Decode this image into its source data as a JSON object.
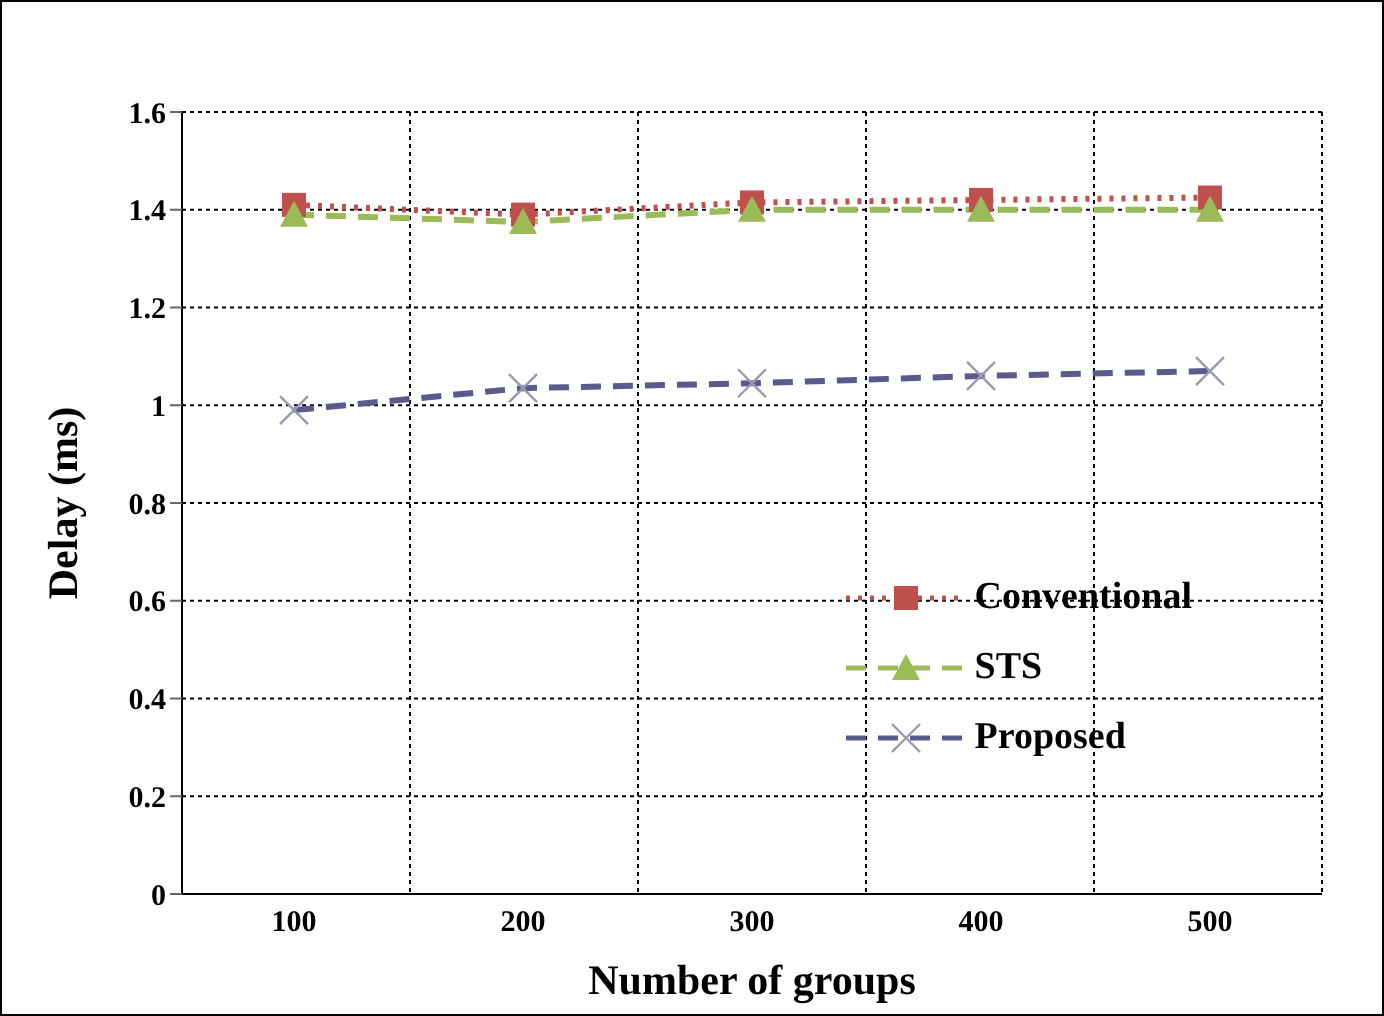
{
  "chart_data": {
    "type": "line",
    "xlabel": "Number of groups",
    "ylabel": "Delay (ms)",
    "categories": [
      "100",
      "200",
      "300",
      "400",
      "500"
    ],
    "ylim": [
      0,
      1.6
    ],
    "yticks": [
      0,
      0.2,
      0.4,
      0.6,
      0.8,
      1,
      1.2,
      1.4,
      1.6
    ],
    "grid": true,
    "legend": "right",
    "series": [
      {
        "name": "Conventional",
        "color": "#c0504d",
        "marker": "square",
        "line_style": "dotted",
        "values": [
          1.41,
          1.39,
          1.415,
          1.42,
          1.425
        ]
      },
      {
        "name": "STS",
        "color": "#9bbb59",
        "marker": "triangle",
        "line_style": "dashed",
        "values": [
          1.39,
          1.375,
          1.4,
          1.4,
          1.4
        ]
      },
      {
        "name": "Proposed",
        "color": "#5a5a8c",
        "marker": "cross",
        "line_style": "dashed",
        "values": [
          0.99,
          1.035,
          1.045,
          1.06,
          1.07
        ]
      }
    ]
  }
}
